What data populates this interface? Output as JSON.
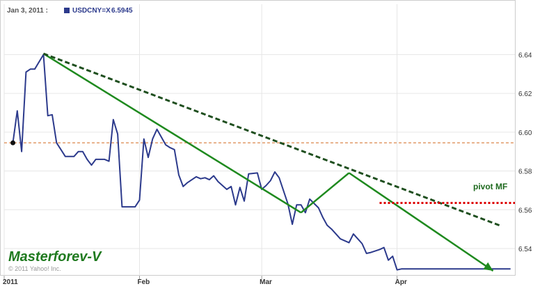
{
  "header": {
    "date_label": "Jan 3, 2011 :",
    "symbol_label": "USDCNY=X",
    "last_value": "6.5945"
  },
  "watermark": {
    "brand": "Masterforev-V",
    "copyright": "© 2011 Yahoo! Inc."
  },
  "annotations": {
    "pivot_label": "pivot MF"
  },
  "colors": {
    "series": "#2c3a8c",
    "trend_green": "#1f8a1f",
    "dashed_green": "#1f4f1f",
    "pivot_red": "#dd0000",
    "ref_line": "#d2691e",
    "grid": "#e6e6e6",
    "frame": "#cccccc"
  },
  "chart_data": {
    "type": "line",
    "title": "",
    "xlabel": "",
    "ylabel": "",
    "x_range": [
      "2011-01-01",
      "2011-04-28"
    ],
    "ylim": [
      6.526,
      6.666
    ],
    "y_axis_side": "right",
    "y_ticks": [
      6.54,
      6.56,
      6.58,
      6.6,
      6.62,
      6.64
    ],
    "y_tick_labels": [
      "6.54",
      "6.56",
      "6.58",
      "6.60",
      "6.62",
      "6.64"
    ],
    "x_ticks": [
      "2011-01-01",
      "2011-02-01",
      "2011-03-01",
      "2011-04-01"
    ],
    "x_tick_labels": [
      "2011",
      "Feb",
      "Mar",
      "Apr"
    ],
    "grid": true,
    "reference_line": {
      "y": 6.5945,
      "style": "dashed"
    },
    "series": [
      {
        "name": "USDCNY=X",
        "x": [
          "2011-01-03",
          "2011-01-04",
          "2011-01-05",
          "2011-01-06",
          "2011-01-07",
          "2011-01-08",
          "2011-01-10",
          "2011-01-11",
          "2011-01-12",
          "2011-01-13",
          "2011-01-14",
          "2011-01-15",
          "2011-01-17",
          "2011-01-18",
          "2011-01-19",
          "2011-01-20",
          "2011-01-21",
          "2011-01-22",
          "2011-01-24",
          "2011-01-25",
          "2011-01-26",
          "2011-01-27",
          "2011-01-28",
          "2011-01-29",
          "2011-01-31",
          "2011-02-01",
          "2011-02-02",
          "2011-02-03",
          "2011-02-04",
          "2011-02-05",
          "2011-02-07",
          "2011-02-08",
          "2011-02-09",
          "2011-02-10",
          "2011-02-11",
          "2011-02-12",
          "2011-02-14",
          "2011-02-15",
          "2011-02-16",
          "2011-02-17",
          "2011-02-18",
          "2011-02-19",
          "2011-02-21",
          "2011-02-22",
          "2011-02-23",
          "2011-02-24",
          "2011-02-25",
          "2011-02-26",
          "2011-02-28",
          "2011-03-01",
          "2011-03-02",
          "2011-03-03",
          "2011-03-04",
          "2011-03-05",
          "2011-03-07",
          "2011-03-08",
          "2011-03-09",
          "2011-03-10",
          "2011-03-11",
          "2011-03-12",
          "2011-03-14",
          "2011-03-15",
          "2011-03-16",
          "2011-03-17",
          "2011-03-18",
          "2011-03-19",
          "2011-03-21",
          "2011-03-22",
          "2011-03-23",
          "2011-03-24",
          "2011-03-25",
          "2011-03-26",
          "2011-03-28",
          "2011-03-29",
          "2011-03-30",
          "2011-03-31",
          "2011-04-01",
          "2011-04-02",
          "2011-04-04",
          "2011-04-05",
          "2011-04-06",
          "2011-04-07",
          "2011-04-08",
          "2011-04-09",
          "2011-04-11",
          "2011-04-12",
          "2011-04-13",
          "2011-04-14",
          "2011-04-15",
          "2011-04-16",
          "2011-04-18",
          "2011-04-19",
          "2011-04-20",
          "2011-04-21",
          "2011-04-22",
          "2011-04-23",
          "2011-04-25",
          "2011-04-26",
          "2011-04-27"
        ],
        "values": [
          6.5945,
          6.611,
          6.59,
          6.631,
          6.6325,
          6.6325,
          6.64,
          6.6085,
          6.609,
          6.5945,
          6.591,
          6.5875,
          6.5875,
          6.59,
          6.59,
          6.586,
          6.583,
          6.586,
          6.586,
          6.585,
          6.6065,
          6.599,
          6.5615,
          6.5615,
          6.5615,
          6.565,
          6.5965,
          6.587,
          6.5965,
          6.6015,
          6.5935,
          6.592,
          6.591,
          6.578,
          6.572,
          6.574,
          6.577,
          6.576,
          6.5765,
          6.5755,
          6.5775,
          6.5745,
          6.5705,
          6.572,
          6.5625,
          6.5715,
          6.5645,
          6.5785,
          6.579,
          6.5705,
          6.5725,
          6.575,
          6.5795,
          6.5765,
          6.563,
          6.5525,
          6.5625,
          6.5625,
          6.5585,
          6.5655,
          6.561,
          6.556,
          6.552,
          6.55,
          6.5475,
          6.545,
          6.543,
          6.5475,
          6.545,
          6.5425,
          6.5375,
          6.538,
          6.5395,
          6.5405,
          6.534,
          6.536,
          6.529,
          6.5295,
          6.5295,
          6.5295,
          6.5295,
          6.5295,
          6.5295,
          6.5295,
          6.5295,
          6.5295,
          6.5295,
          6.5295,
          6.5295,
          6.5295,
          6.5295,
          6.5295,
          6.5295,
          6.5295,
          6.5295,
          6.5295,
          6.5295,
          6.5295,
          6.5295
        ]
      }
    ],
    "trendlines": [
      {
        "style": "solid",
        "points": [
          [
            "2011-01-10",
            6.6405
          ],
          [
            "2011-03-10",
            6.5585
          ]
        ]
      },
      {
        "style": "solid",
        "points": [
          [
            "2011-03-10",
            6.5585
          ],
          [
            "2011-03-21",
            6.579
          ]
        ]
      },
      {
        "style": "solid",
        "points": [
          [
            "2011-03-21",
            6.579
          ],
          [
            "2011-04-23",
            6.5285
          ]
        ],
        "arrow": true
      },
      {
        "style": "dashed",
        "points": [
          [
            "2011-01-10",
            6.6405
          ],
          [
            "2011-04-25",
            6.5515
          ]
        ]
      }
    ],
    "pivot_line": {
      "y": 6.5635,
      "x_start": "2011-03-28",
      "x_end": "2011-04-28",
      "style": "dotted"
    }
  }
}
